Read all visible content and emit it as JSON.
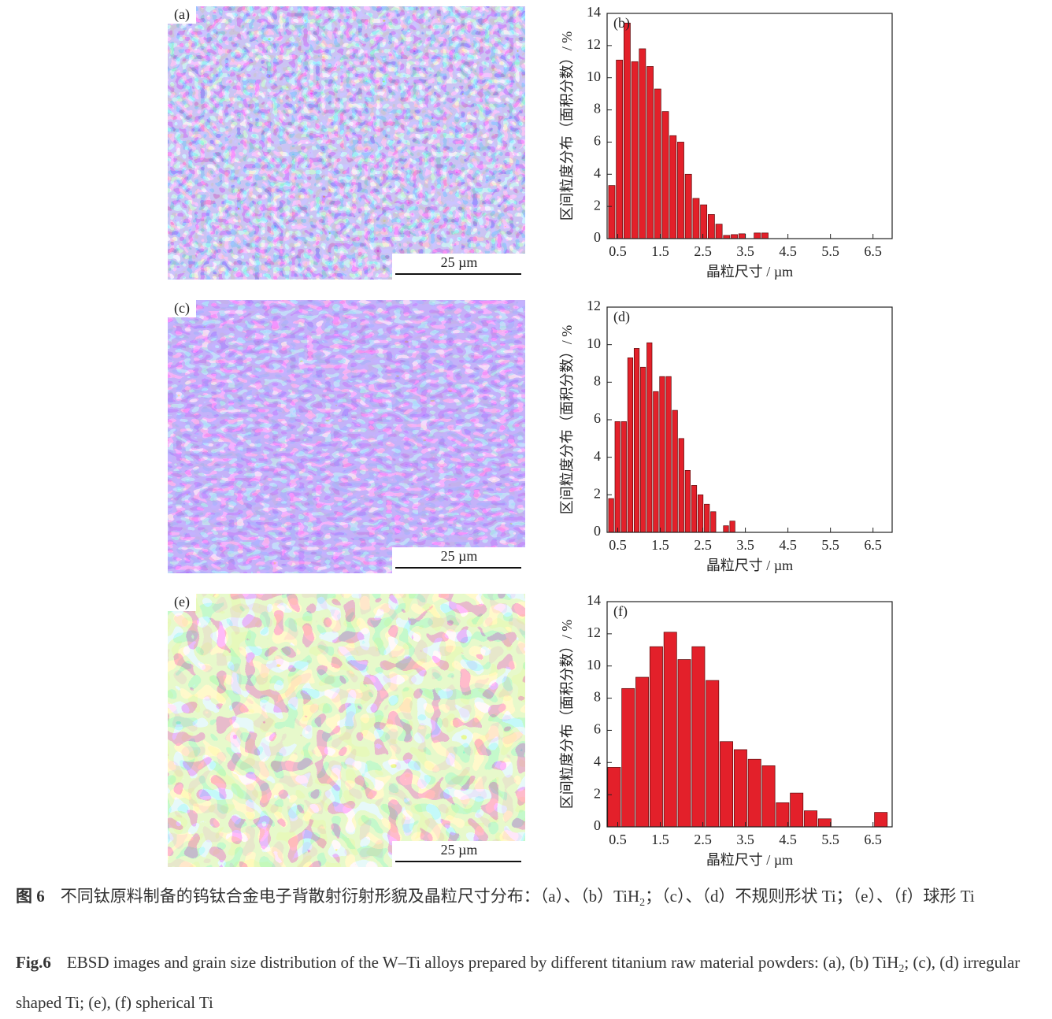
{
  "images": [
    {
      "label": "(a)",
      "scale_bar": "25 µm"
    },
    {
      "label": "(c)",
      "scale_bar": "25 µm"
    },
    {
      "label": "(e)",
      "scale_bar": "25 µm"
    }
  ],
  "chart_data": [
    {
      "type": "histogram",
      "label": "(b)",
      "y_label": "区间粒度分布（面积分数）/ %",
      "x_label": "晶粒尺寸 / µm",
      "color": "#e3202a",
      "bins": [
        0.27,
        0.45,
        0.63,
        0.81,
        0.99,
        1.17,
        1.35,
        1.53,
        1.71,
        1.89,
        2.07,
        2.25,
        2.43,
        2.61,
        2.79,
        2.97,
        3.15,
        3.33,
        3.51,
        3.69,
        3.87,
        4.05
      ],
      "values": [
        3.3,
        11.1,
        13.4,
        11.0,
        11.8,
        10.7,
        9.3,
        7.9,
        6.4,
        6.0,
        4.0,
        2.5,
        2.1,
        1.5,
        0.9,
        0.2,
        0.25,
        0.3,
        0,
        0.35,
        0.35
      ],
      "xlim": [
        0.25,
        6.95
      ],
      "xticks": [
        0.5,
        1.5,
        2.5,
        3.5,
        4.5,
        5.5,
        6.5
      ],
      "ylim": [
        0,
        14
      ],
      "yticks": [
        0,
        2,
        4,
        6,
        8,
        10,
        12,
        14
      ]
    },
    {
      "type": "histogram",
      "label": "(d)",
      "y_label": "区间粒度分布（面积分数）/ %",
      "x_label": "晶粒尺寸 / µm",
      "color": "#e3202a",
      "bins": [
        0.27,
        0.42,
        0.57,
        0.72,
        0.87,
        1.02,
        1.17,
        1.32,
        1.47,
        1.62,
        1.77,
        1.92,
        2.07,
        2.22,
        2.37,
        2.52,
        2.67,
        2.82,
        2.97,
        3.12,
        3.27
      ],
      "values": [
        1.8,
        5.9,
        5.9,
        9.3,
        9.8,
        8.8,
        10.1,
        7.5,
        8.3,
        8.3,
        6.5,
        5.0,
        3.3,
        2.5,
        2.0,
        1.5,
        1.1,
        0,
        0.35,
        0.6
      ],
      "xlim": [
        0.25,
        6.95
      ],
      "xticks": [
        0.5,
        1.5,
        2.5,
        3.5,
        4.5,
        5.5,
        6.5
      ],
      "ylim": [
        0,
        12
      ],
      "yticks": [
        0,
        2,
        4,
        6,
        8,
        10,
        12
      ]
    },
    {
      "type": "histogram",
      "label": "(f)",
      "y_label": "区间粒度分布（面积分数）/ %",
      "x_label": "晶粒尺寸 / µm",
      "color": "#e3202a",
      "bins": [
        0.25,
        0.58,
        0.91,
        1.24,
        1.57,
        1.9,
        2.23,
        2.56,
        2.89,
        3.22,
        3.55,
        3.88,
        4.21,
        4.54,
        4.87,
        5.2,
        5.53,
        5.86,
        6.19,
        6.52,
        6.85
      ],
      "values": [
        3.7,
        8.6,
        9.3,
        11.2,
        12.1,
        10.4,
        11.2,
        9.1,
        5.3,
        4.8,
        4.2,
        3.8,
        1.5,
        2.1,
        1.0,
        0.5,
        0,
        0,
        0,
        0.9
      ],
      "xlim": [
        0.25,
        6.95
      ],
      "xticks": [
        0.5,
        1.5,
        2.5,
        3.5,
        4.5,
        5.5,
        6.5
      ],
      "ylim": [
        0,
        14
      ],
      "yticks": [
        0,
        2,
        4,
        6,
        8,
        10,
        12,
        14
      ]
    }
  ],
  "caption": {
    "cn": [
      "图 6",
      "不同钛原料制备的钨钛合金电子背散射衍射形貌及晶粒尺寸分布：（a）、（b）TiH",
      "2",
      "；（c）、（d）不规则形状 Ti；（e）、（f）球形 Ti"
    ],
    "en": [
      "Fig.6",
      "EBSD images and grain size distribution of the W–Ti alloys prepared by different titanium raw material powders: (a), (b) TiH",
      "2",
      "; (c), (d) irregular shaped Ti; (e), (f) spherical Ti"
    ]
  }
}
